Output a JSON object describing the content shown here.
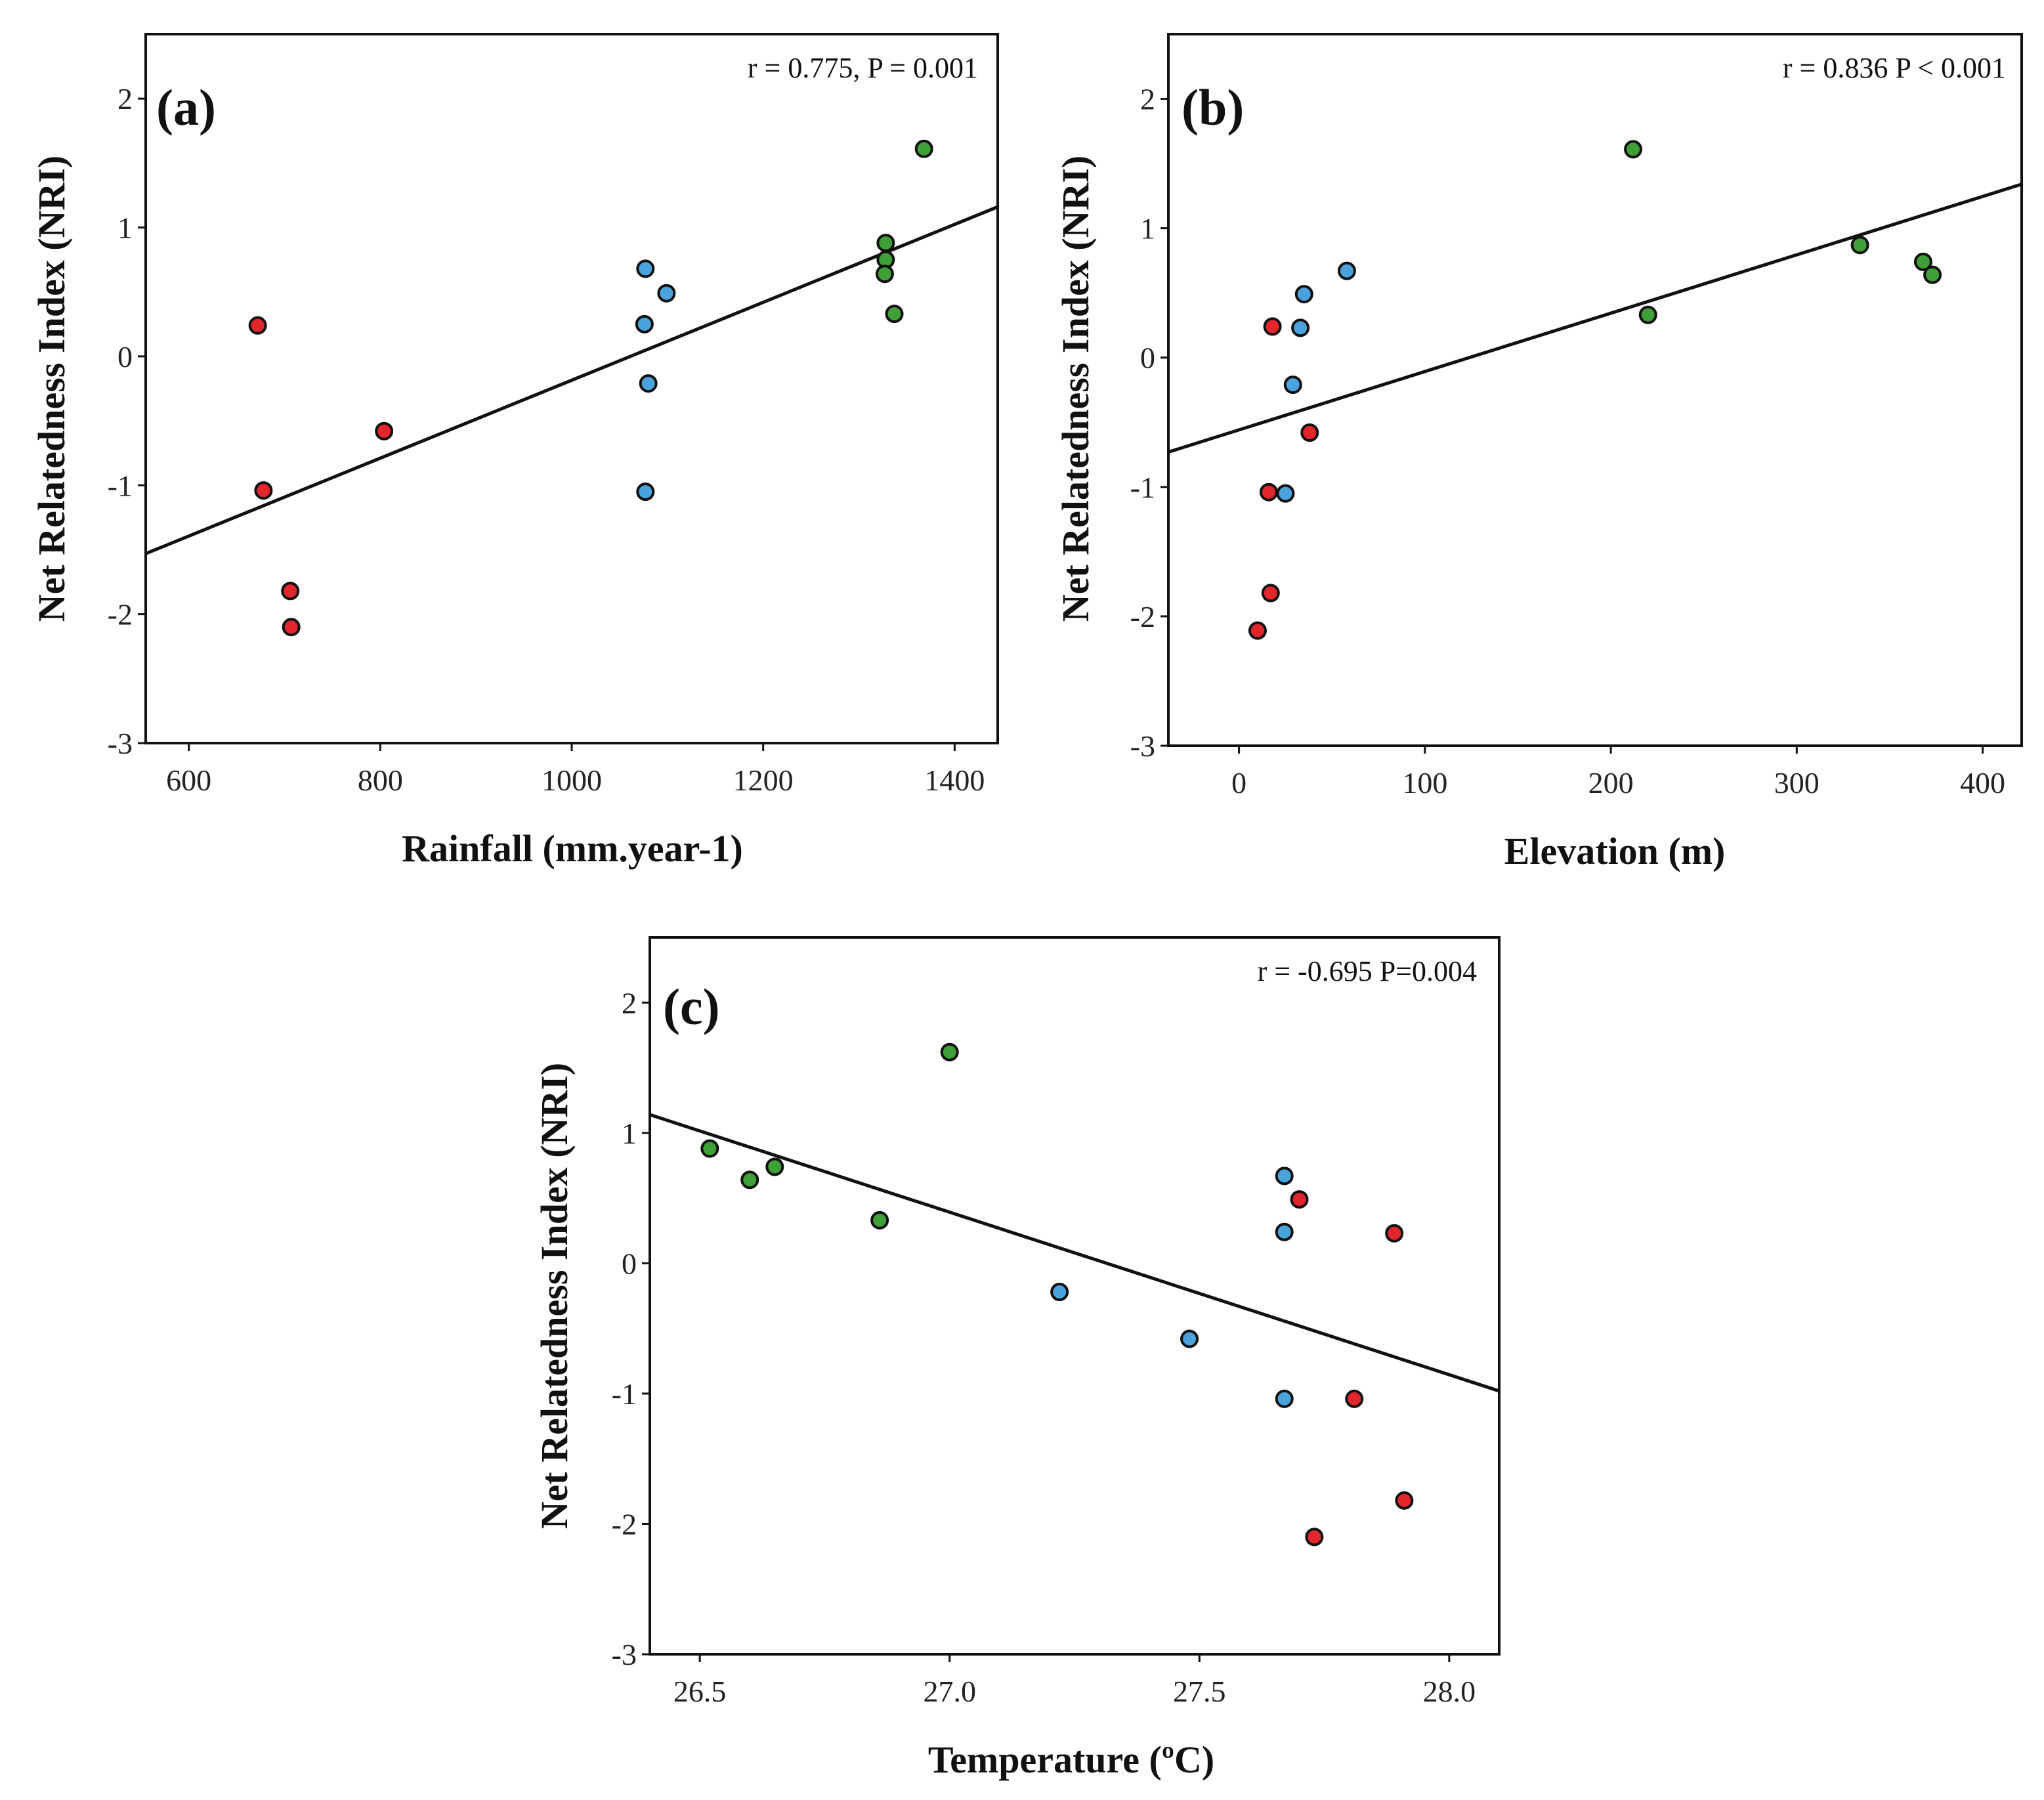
{
  "colors": {
    "red": "#e3262b",
    "blue": "#4aa3dc",
    "green": "#3fa037"
  },
  "chart_data": [
    {
      "id": "a",
      "type": "scatter",
      "panel_label": "(a)",
      "stat_text": "r  = 0.775, P = 0.001",
      "xlabel": "Rainfall (mm.year-1)",
      "ylabel": "Net Relatedness Index (NRI)",
      "xlim": [
        555,
        1445
      ],
      "ylim": [
        -3,
        2.5
      ],
      "xticks": [
        600,
        800,
        1000,
        1200,
        1400
      ],
      "xtick_labels": [
        "600",
        "800",
        "1000",
        "1200",
        "1400"
      ],
      "yticks": [
        -3,
        -2,
        -1,
        0,
        1,
        2
      ],
      "ytick_labels": [
        "-3",
        "-2",
        "-1",
        "0",
        "1",
        "2"
      ],
      "fit_line": {
        "x": [
          555,
          1445
        ],
        "y": [
          -1.53,
          1.16
        ]
      },
      "points": [
        {
          "x": 672,
          "y": 0.24,
          "c": "red"
        },
        {
          "x": 678,
          "y": -1.04,
          "c": "red"
        },
        {
          "x": 706,
          "y": -1.82,
          "c": "red"
        },
        {
          "x": 707,
          "y": -2.1,
          "c": "red"
        },
        {
          "x": 804,
          "y": -0.58,
          "c": "red"
        },
        {
          "x": 1077,
          "y": 0.68,
          "c": "blue"
        },
        {
          "x": 1076,
          "y": 0.25,
          "c": "blue"
        },
        {
          "x": 1099,
          "y": 0.49,
          "c": "blue"
        },
        {
          "x": 1080,
          "y": -0.21,
          "c": "blue"
        },
        {
          "x": 1077,
          "y": -1.05,
          "c": "blue"
        },
        {
          "x": 1328,
          "y": 0.88,
          "c": "green"
        },
        {
          "x": 1328,
          "y": 0.75,
          "c": "green"
        },
        {
          "x": 1327,
          "y": 0.64,
          "c": "green"
        },
        {
          "x": 1337,
          "y": 0.33,
          "c": "green"
        },
        {
          "x": 1368,
          "y": 1.61,
          "c": "green"
        }
      ]
    },
    {
      "id": "b",
      "type": "scatter",
      "panel_label": "(b)",
      "stat_text": "r = 0.836 P < 0.001",
      "xlabel": "Elevation (m)",
      "ylabel": "Net Relatedness Index (NRI)",
      "xlim": [
        -38,
        421
      ],
      "ylim": [
        -3,
        2.5
      ],
      "xticks": [
        0,
        100,
        200,
        300,
        400
      ],
      "xtick_labels": [
        "0",
        "100",
        "200",
        "300",
        "400"
      ],
      "yticks": [
        -3,
        -2,
        -1,
        0,
        1,
        2
      ],
      "ytick_labels": [
        "-3",
        "-2",
        "-1",
        "0",
        "1",
        "2"
      ],
      "fit_line": {
        "x": [
          -38,
          421
        ],
        "y": [
          -0.73,
          1.34
        ]
      },
      "points": [
        {
          "x": 18,
          "y": 0.24,
          "c": "red"
        },
        {
          "x": 16,
          "y": -1.04,
          "c": "red"
        },
        {
          "x": 17,
          "y": -1.82,
          "c": "red"
        },
        {
          "x": 10,
          "y": -2.11,
          "c": "red"
        },
        {
          "x": 38,
          "y": -0.58,
          "c": "red"
        },
        {
          "x": 58,
          "y": 0.67,
          "c": "blue"
        },
        {
          "x": 35,
          "y": 0.49,
          "c": "blue"
        },
        {
          "x": 33,
          "y": 0.23,
          "c": "blue"
        },
        {
          "x": 29,
          "y": -0.21,
          "c": "blue"
        },
        {
          "x": 25,
          "y": -1.05,
          "c": "blue"
        },
        {
          "x": 212,
          "y": 1.61,
          "c": "green"
        },
        {
          "x": 220,
          "y": 0.33,
          "c": "green"
        },
        {
          "x": 334,
          "y": 0.87,
          "c": "green"
        },
        {
          "x": 368,
          "y": 0.74,
          "c": "green"
        },
        {
          "x": 373,
          "y": 0.64,
          "c": "green"
        }
      ]
    },
    {
      "id": "c",
      "type": "scatter",
      "panel_label": "(c)",
      "stat_text": "r = -0.695 P=0.004",
      "xlabel": "Temperature (ºC)",
      "ylabel": "Net Relatedness Index (NRI)",
      "xlim": [
        26.4,
        28.1
      ],
      "ylim": [
        -3,
        2.5
      ],
      "xticks": [
        26.5,
        27.0,
        27.5,
        28.0
      ],
      "xtick_labels": [
        "26.5",
        "27.0",
        "27.5",
        "28.0"
      ],
      "yticks": [
        -3,
        -2,
        -1,
        0,
        1,
        2
      ],
      "ytick_labels": [
        "-3",
        "-2",
        "-1",
        "0",
        "1",
        "2"
      ],
      "fit_line": {
        "x": [
          26.4,
          28.1
        ],
        "y": [
          1.14,
          -0.98
        ]
      },
      "points": [
        {
          "x": 26.52,
          "y": 0.88,
          "c": "green"
        },
        {
          "x": 26.6,
          "y": 0.64,
          "c": "green"
        },
        {
          "x": 26.65,
          "y": 0.74,
          "c": "green"
        },
        {
          "x": 26.86,
          "y": 0.33,
          "c": "green"
        },
        {
          "x": 27.0,
          "y": 1.62,
          "c": "green"
        },
        {
          "x": 27.22,
          "y": -0.22,
          "c": "blue"
        },
        {
          "x": 27.48,
          "y": -0.58,
          "c": "blue"
        },
        {
          "x": 27.67,
          "y": 0.67,
          "c": "blue"
        },
        {
          "x": 27.67,
          "y": 0.24,
          "c": "blue"
        },
        {
          "x": 27.67,
          "y": -1.04,
          "c": "blue"
        },
        {
          "x": 27.7,
          "y": 0.49,
          "c": "red"
        },
        {
          "x": 27.89,
          "y": 0.23,
          "c": "red"
        },
        {
          "x": 27.81,
          "y": -1.04,
          "c": "red"
        },
        {
          "x": 27.73,
          "y": -2.1,
          "c": "red"
        },
        {
          "x": 27.91,
          "y": -1.82,
          "c": "red"
        }
      ]
    }
  ]
}
